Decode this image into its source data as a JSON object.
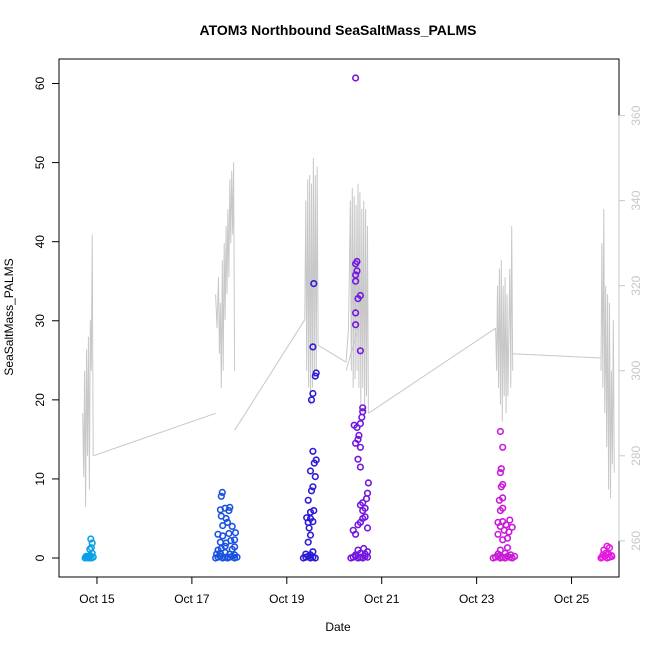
{
  "chart_data": {
    "type": "scatter",
    "title": "ATOM3 Northbound SeaSaltMass_PALMS",
    "xlabel": "Date",
    "ylabel": "SeaSaltMass_PALMS",
    "x_unit": "day of October",
    "xlim": [
      14.2,
      26.0
    ],
    "ylim": [
      -2.4,
      63.1
    ],
    "y_ticks": [
      0,
      10,
      20,
      30,
      40,
      50,
      60
    ],
    "x_ticks": [
      {
        "value": 15,
        "label": "Oct 15"
      },
      {
        "value": 17,
        "label": "Oct 17"
      },
      {
        "value": 19,
        "label": "Oct 19"
      },
      {
        "value": 21,
        "label": "Oct 21"
      },
      {
        "value": 23,
        "label": "Oct 23"
      },
      {
        "value": 25,
        "label": "Oct 25"
      }
    ],
    "y2_ticks": [
      260,
      280,
      300,
      320,
      340,
      360
    ],
    "y2lim": [
      251.5,
      373.3
    ],
    "grid": false,
    "series": [
      {
        "color": "#0aa0e8",
        "points": [
          [
            14.75,
            0.0
          ],
          [
            14.78,
            0.1
          ],
          [
            14.8,
            0.2
          ],
          [
            14.82,
            0.0
          ],
          [
            14.84,
            0.1
          ],
          [
            14.86,
            0.3
          ],
          [
            14.88,
            0.0
          ],
          [
            14.9,
            0.6
          ],
          [
            14.85,
            1.1
          ],
          [
            14.88,
            1.3
          ],
          [
            14.9,
            1.9
          ],
          [
            14.87,
            2.4
          ],
          [
            14.82,
            0.2
          ],
          [
            14.92,
            0.1
          ],
          [
            14.77,
            0.2
          ]
        ]
      },
      {
        "color": "#1a52e0",
        "points": [
          [
            17.5,
            0.0
          ],
          [
            17.55,
            0.1
          ],
          [
            17.6,
            0.2
          ],
          [
            17.65,
            0.0
          ],
          [
            17.7,
            0.1
          ],
          [
            17.75,
            0.0
          ],
          [
            17.8,
            0.1
          ],
          [
            17.85,
            0.2
          ],
          [
            17.9,
            0.0
          ],
          [
            17.95,
            0.1
          ],
          [
            17.52,
            0.5
          ],
          [
            17.6,
            0.6
          ],
          [
            17.7,
            0.7
          ],
          [
            17.8,
            0.5
          ],
          [
            17.9,
            0.4
          ],
          [
            17.55,
            1.0
          ],
          [
            17.62,
            1.2
          ],
          [
            17.7,
            1.5
          ],
          [
            17.85,
            1.1
          ],
          [
            17.9,
            1.4
          ],
          [
            17.6,
            2.0
          ],
          [
            17.72,
            1.9
          ],
          [
            17.82,
            2.2
          ],
          [
            17.9,
            2.3
          ],
          [
            17.55,
            3.0
          ],
          [
            17.65,
            2.8
          ],
          [
            17.78,
            3.1
          ],
          [
            17.92,
            3.2
          ],
          [
            17.65,
            4.1
          ],
          [
            17.75,
            4.5
          ],
          [
            17.85,
            4.0
          ],
          [
            17.62,
            5.3
          ],
          [
            17.72,
            5.0
          ],
          [
            17.6,
            6.1
          ],
          [
            17.7,
            6.3
          ],
          [
            17.78,
            6.0
          ],
          [
            17.62,
            7.8
          ],
          [
            17.64,
            8.3
          ],
          [
            17.8,
            6.4
          ]
        ]
      },
      {
        "color": "#2b1ad8",
        "points": [
          [
            19.35,
            0.0
          ],
          [
            19.4,
            0.1
          ],
          [
            19.45,
            0.2
          ],
          [
            19.5,
            0.0
          ],
          [
            19.55,
            0.1
          ],
          [
            19.6,
            0.0
          ],
          [
            19.4,
            0.5
          ],
          [
            19.5,
            0.4
          ],
          [
            19.55,
            0.8
          ],
          [
            19.45,
            2.0
          ],
          [
            19.5,
            2.9
          ],
          [
            19.47,
            3.8
          ],
          [
            19.45,
            4.5
          ],
          [
            19.5,
            5.0
          ],
          [
            19.55,
            4.6
          ],
          [
            19.42,
            5.1
          ],
          [
            19.5,
            5.8
          ],
          [
            19.57,
            6.0
          ],
          [
            19.45,
            7.3
          ],
          [
            19.52,
            8.5
          ],
          [
            19.55,
            9.0
          ],
          [
            19.6,
            10.3
          ],
          [
            19.5,
            11.0
          ],
          [
            19.58,
            12.0
          ],
          [
            19.62,
            12.4
          ],
          [
            19.55,
            13.5
          ],
          [
            19.52,
            20.0
          ],
          [
            19.55,
            20.8
          ],
          [
            19.6,
            23.0
          ],
          [
            19.62,
            23.4
          ],
          [
            19.55,
            26.7
          ],
          [
            19.57,
            34.7
          ]
        ]
      },
      {
        "color": "#7216e0",
        "points": [
          [
            20.35,
            0.0
          ],
          [
            20.4,
            0.1
          ],
          [
            20.45,
            0.2
          ],
          [
            20.5,
            0.0
          ],
          [
            20.55,
            0.1
          ],
          [
            20.6,
            0.0
          ],
          [
            20.65,
            0.2
          ],
          [
            20.7,
            0.1
          ],
          [
            20.45,
            0.4
          ],
          [
            20.55,
            0.6
          ],
          [
            20.65,
            0.5
          ],
          [
            20.5,
            1.0
          ],
          [
            20.62,
            1.2
          ],
          [
            20.7,
            0.8
          ],
          [
            20.4,
            3.5
          ],
          [
            20.45,
            3.0
          ],
          [
            20.5,
            4.2
          ],
          [
            20.55,
            4.5
          ],
          [
            20.6,
            5.0
          ],
          [
            20.65,
            5.2
          ],
          [
            20.7,
            3.8
          ],
          [
            20.6,
            6.0
          ],
          [
            20.65,
            6.3
          ],
          [
            20.55,
            6.7
          ],
          [
            20.6,
            7.0
          ],
          [
            20.68,
            7.5
          ],
          [
            20.7,
            8.2
          ],
          [
            20.72,
            9.5
          ],
          [
            20.5,
            12.5
          ],
          [
            20.55,
            14.0
          ],
          [
            20.45,
            14.5
          ],
          [
            20.5,
            15.0
          ],
          [
            20.52,
            15.5
          ],
          [
            20.48,
            16.5
          ],
          [
            20.55,
            17.0
          ],
          [
            20.58,
            17.8
          ],
          [
            20.6,
            18.5
          ],
          [
            20.6,
            19.0
          ],
          [
            20.55,
            11.5
          ],
          [
            20.42,
            16.8
          ],
          [
            20.45,
            29.5
          ],
          [
            20.45,
            31.0
          ],
          [
            20.5,
            32.8
          ],
          [
            20.55,
            33.2
          ],
          [
            20.55,
            26.2
          ],
          [
            20.45,
            35.0
          ],
          [
            20.45,
            35.8
          ],
          [
            20.48,
            36.3
          ],
          [
            20.45,
            37.2
          ],
          [
            20.48,
            37.5
          ],
          [
            20.45,
            60.7
          ]
        ]
      },
      {
        "color": "#c81ad8",
        "points": [
          [
            23.35,
            0.0
          ],
          [
            23.4,
            0.1
          ],
          [
            23.45,
            0.2
          ],
          [
            23.5,
            0.0
          ],
          [
            23.55,
            0.1
          ],
          [
            23.6,
            0.0
          ],
          [
            23.65,
            0.2
          ],
          [
            23.7,
            0.1
          ],
          [
            23.75,
            0.0
          ],
          [
            23.8,
            0.2
          ],
          [
            23.45,
            0.5
          ],
          [
            23.6,
            0.6
          ],
          [
            23.72,
            0.4
          ],
          [
            23.5,
            1.0
          ],
          [
            23.65,
            1.3
          ],
          [
            23.55,
            2.3
          ],
          [
            23.65,
            2.5
          ],
          [
            23.45,
            3.0
          ],
          [
            23.58,
            3.5
          ],
          [
            23.68,
            3.3
          ],
          [
            23.5,
            4.0
          ],
          [
            23.55,
            4.6
          ],
          [
            23.62,
            4.2
          ],
          [
            23.7,
            4.8
          ],
          [
            23.75,
            3.9
          ],
          [
            23.45,
            4.5
          ],
          [
            23.5,
            6.0
          ],
          [
            23.55,
            6.3
          ],
          [
            23.48,
            7.3
          ],
          [
            23.55,
            7.6
          ],
          [
            23.52,
            9.0
          ],
          [
            23.55,
            9.3
          ],
          [
            23.5,
            10.8
          ],
          [
            23.52,
            11.3
          ],
          [
            23.55,
            14.0
          ],
          [
            23.5,
            16.0
          ]
        ]
      },
      {
        "color": "#e51ae0",
        "points": [
          [
            25.62,
            0.0
          ],
          [
            25.65,
            0.1
          ],
          [
            25.7,
            0.2
          ],
          [
            25.75,
            0.0
          ],
          [
            25.8,
            0.1
          ],
          [
            25.85,
            0.2
          ],
          [
            25.66,
            0.4
          ],
          [
            25.72,
            0.6
          ],
          [
            25.78,
            0.5
          ],
          [
            25.68,
            1.0
          ],
          [
            25.8,
            1.3
          ],
          [
            25.75,
            1.5
          ],
          [
            25.84,
            0.3
          ]
        ]
      }
    ],
    "line_series": {
      "color": "#c8c8c8",
      "axis": "right",
      "segments": [
        [
          [
            14.7,
            290
          ],
          [
            14.72,
            275
          ],
          [
            14.74,
            300
          ],
          [
            14.76,
            268
          ],
          [
            14.78,
            305
          ],
          [
            14.8,
            280
          ],
          [
            14.82,
            308
          ],
          [
            14.84,
            272
          ],
          [
            14.86,
            312
          ],
          [
            14.88,
            300
          ],
          [
            14.9,
            332
          ],
          [
            14.92,
            280
          ]
        ],
        [
          [
            17.5,
            318
          ],
          [
            17.53,
            310
          ],
          [
            17.56,
            322
          ],
          [
            17.58,
            304
          ],
          [
            17.6,
            316
          ],
          [
            17.62,
            296
          ],
          [
            17.64,
            326
          ],
          [
            17.66,
            300
          ],
          [
            17.68,
            330
          ],
          [
            17.7,
            312
          ],
          [
            17.72,
            334
          ],
          [
            17.74,
            318
          ],
          [
            17.76,
            338
          ],
          [
            17.78,
            322
          ],
          [
            17.8,
            345
          ],
          [
            17.82,
            330
          ],
          [
            17.84,
            347
          ],
          [
            17.86,
            332
          ],
          [
            17.88,
            349
          ],
          [
            17.9,
            300
          ]
        ],
        [
          [
            19.38,
            312
          ],
          [
            19.4,
            340
          ],
          [
            19.42,
            300
          ],
          [
            19.44,
            345
          ],
          [
            19.46,
            296
          ],
          [
            19.48,
            346
          ],
          [
            19.5,
            292
          ],
          [
            19.52,
            344
          ],
          [
            19.54,
            296
          ],
          [
            19.56,
            350
          ],
          [
            19.58,
            298
          ],
          [
            19.6,
            346
          ],
          [
            19.62,
            300
          ],
          [
            19.64,
            348
          ],
          [
            19.66,
            306
          ]
        ],
        [
          [
            20.25,
            302
          ],
          [
            20.3,
            310
          ],
          [
            20.34,
            340
          ],
          [
            20.36,
            300
          ],
          [
            20.38,
            343
          ],
          [
            20.4,
            296
          ],
          [
            20.42,
            341
          ],
          [
            20.44,
            298
          ],
          [
            20.46,
            339
          ],
          [
            20.48,
            300
          ],
          [
            20.5,
            344
          ],
          [
            20.52,
            296
          ],
          [
            20.54,
            342
          ],
          [
            20.56,
            292
          ],
          [
            20.58,
            338
          ],
          [
            20.6,
            296
          ],
          [
            20.62,
            340
          ],
          [
            20.64,
            290
          ],
          [
            20.66,
            338
          ],
          [
            20.68,
            294
          ],
          [
            20.7,
            334
          ],
          [
            20.72,
            290
          ]
        ],
        [
          [
            23.4,
            310
          ],
          [
            23.42,
            300
          ],
          [
            23.44,
            320
          ],
          [
            23.46,
            296
          ],
          [
            23.48,
            324
          ],
          [
            23.5,
            292
          ],
          [
            23.52,
            326
          ],
          [
            23.54,
            288
          ],
          [
            23.56,
            320
          ],
          [
            23.58,
            294
          ],
          [
            23.6,
            322
          ],
          [
            23.62,
            290
          ],
          [
            23.64,
            318
          ],
          [
            23.66,
            294
          ],
          [
            23.7,
            324
          ],
          [
            23.72,
            296
          ],
          [
            23.74,
            334
          ],
          [
            23.76,
            300
          ]
        ],
        [
          [
            25.62,
            300
          ],
          [
            25.64,
            330
          ],
          [
            25.66,
            296
          ],
          [
            25.68,
            338
          ],
          [
            25.7,
            290
          ],
          [
            25.72,
            320
          ],
          [
            25.74,
            282
          ],
          [
            25.76,
            318
          ],
          [
            25.78,
            272
          ],
          [
            25.8,
            316
          ],
          [
            25.82,
            270
          ],
          [
            25.84,
            300
          ],
          [
            25.86,
            278
          ],
          [
            25.88,
            312
          ],
          [
            25.9,
            276
          ]
        ]
      ],
      "connectors": [
        [
          [
            14.92,
            280
          ],
          [
            17.5,
            290
          ]
        ],
        [
          [
            17.9,
            286
          ],
          [
            19.38,
            312
          ]
        ],
        [
          [
            19.66,
            306
          ],
          [
            20.25,
            302
          ]
        ],
        [
          [
            20.25,
            300
          ],
          [
            20.5,
            310
          ]
        ],
        [
          [
            20.72,
            290
          ],
          [
            23.4,
            310
          ]
        ],
        [
          [
            23.76,
            304
          ],
          [
            25.62,
            303
          ]
        ]
      ]
    }
  }
}
